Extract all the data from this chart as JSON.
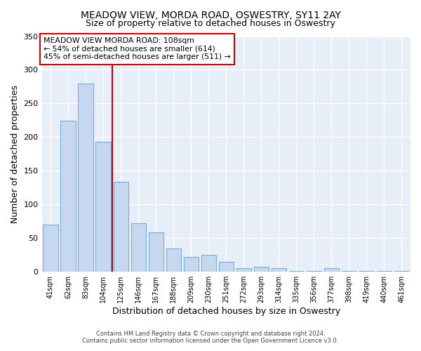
{
  "title": "MEADOW VIEW, MORDA ROAD, OSWESTRY, SY11 2AY",
  "subtitle": "Size of property relative to detached houses in Oswestry",
  "xlabel": "Distribution of detached houses by size in Oswestry",
  "ylabel": "Number of detached properties",
  "bar_labels": [
    "41sqm",
    "62sqm",
    "83sqm",
    "104sqm",
    "125sqm",
    "146sqm",
    "167sqm",
    "188sqm",
    "209sqm",
    "230sqm",
    "251sqm",
    "272sqm",
    "293sqm",
    "314sqm",
    "335sqm",
    "356sqm",
    "377sqm",
    "398sqm",
    "419sqm",
    "440sqm",
    "461sqm"
  ],
  "bar_values": [
    70,
    224,
    280,
    193,
    134,
    72,
    58,
    34,
    22,
    25,
    15,
    5,
    7,
    5,
    1,
    1,
    5,
    1,
    1,
    1,
    1
  ],
  "bar_color": "#c5d8f0",
  "bar_edge_color": "#7aadd4",
  "vline_color": "#cc0000",
  "ylim": [
    0,
    350
  ],
  "yticks": [
    0,
    50,
    100,
    150,
    200,
    250,
    300,
    350
  ],
  "annotation_line1": "MEADOW VIEW MORDA ROAD: 108sqm",
  "annotation_line2": "← 54% of detached houses are smaller (614)",
  "annotation_line3": "45% of semi-detached houses are larger (511) →",
  "annotation_box_color": "#cc0000",
  "footer_line1": "Contains HM Land Registry data © Crown copyright and database right 2024.",
  "footer_line2": "Contains public sector information licensed under the Open Government Licence v3.0.",
  "plot_bg_color": "#e8eef8",
  "fig_bg_color": "#ffffff",
  "grid_color": "#ffffff",
  "title_fontsize": 10,
  "subtitle_fontsize": 9,
  "title_fontweight": "normal"
}
